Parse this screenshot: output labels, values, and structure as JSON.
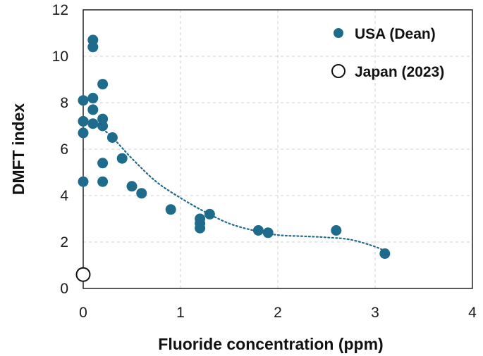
{
  "chart_data": {
    "type": "scatter",
    "xlabel": "Fluoride concentration (ppm)",
    "ylabel": "DMFT index",
    "xlim": [
      0,
      4
    ],
    "ylim": [
      0,
      12
    ],
    "xticks": [
      "0",
      "1",
      "2",
      "3",
      "4"
    ],
    "yticks": [
      "0",
      "2",
      "4",
      "6",
      "8",
      "10",
      "12"
    ],
    "grid": true,
    "legend_position": "top-right",
    "colors": {
      "usa": "#1f6b8c",
      "japan_fill": "#ffffff",
      "japan_stroke": "#111111",
      "trend": "#1f6b8c"
    },
    "series": [
      {
        "name": "USA (Dean)",
        "marker": "filled-circle",
        "points": [
          [
            0.0,
            8.1
          ],
          [
            0.0,
            7.2
          ],
          [
            0.0,
            6.7
          ],
          [
            0.0,
            4.6
          ],
          [
            0.1,
            10.7
          ],
          [
            0.1,
            10.4
          ],
          [
            0.1,
            8.2
          ],
          [
            0.1,
            7.7
          ],
          [
            0.1,
            7.1
          ],
          [
            0.2,
            8.8
          ],
          [
            0.2,
            7.3
          ],
          [
            0.2,
            7.0
          ],
          [
            0.2,
            5.4
          ],
          [
            0.2,
            4.6
          ],
          [
            0.3,
            6.5
          ],
          [
            0.4,
            5.6
          ],
          [
            0.5,
            4.4
          ],
          [
            0.6,
            4.1
          ],
          [
            0.9,
            3.4
          ],
          [
            1.2,
            3.0
          ],
          [
            1.2,
            2.8
          ],
          [
            1.2,
            2.6
          ],
          [
            1.3,
            3.2
          ],
          [
            1.8,
            2.5
          ],
          [
            1.9,
            2.4
          ],
          [
            2.6,
            2.5
          ],
          [
            3.1,
            1.5
          ]
        ]
      },
      {
        "name": "Japan (2023)",
        "marker": "open-circle",
        "points": [
          [
            0.0,
            0.6
          ]
        ]
      }
    ],
    "trendline": {
      "style": "dotted",
      "points": [
        [
          0.0,
          7.4
        ],
        [
          0.25,
          6.7
        ],
        [
          0.5,
          5.6
        ],
        [
          0.75,
          4.6
        ],
        [
          1.0,
          3.9
        ],
        [
          1.25,
          3.3
        ],
        [
          1.5,
          2.8
        ],
        [
          1.75,
          2.5
        ],
        [
          2.0,
          2.3
        ],
        [
          2.25,
          2.25
        ],
        [
          2.5,
          2.2
        ],
        [
          2.75,
          2.1
        ],
        [
          3.0,
          1.8
        ],
        [
          3.1,
          1.6
        ]
      ]
    }
  }
}
